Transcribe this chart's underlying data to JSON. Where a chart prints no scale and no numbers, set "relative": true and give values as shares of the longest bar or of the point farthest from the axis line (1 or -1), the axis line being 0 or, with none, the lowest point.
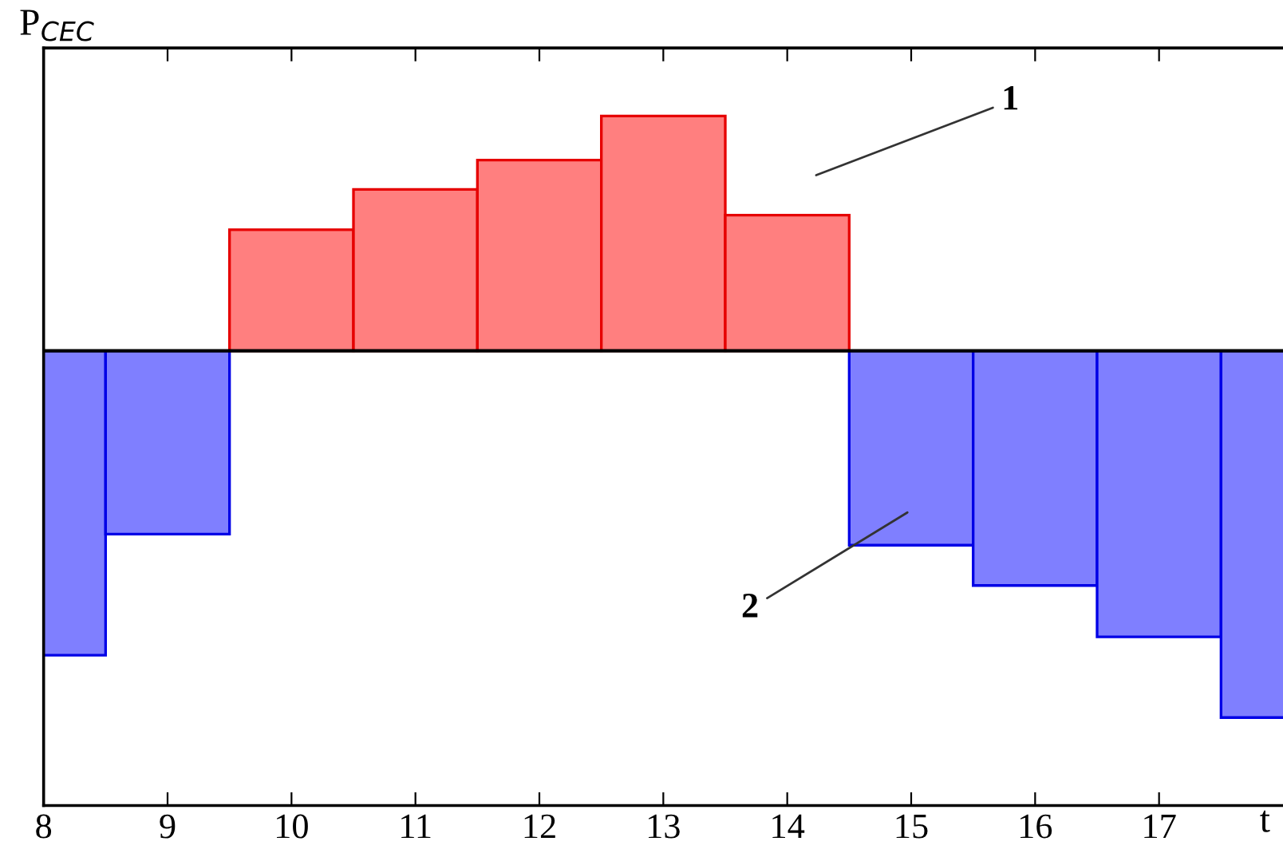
{
  "chart_data": {
    "type": "bar",
    "relative": true,
    "ylabel": "P$_{CEC}$",
    "xlabel": "t",
    "x": [
      8,
      9,
      10,
      11,
      12,
      13,
      14,
      15,
      16,
      17,
      18
    ],
    "xlim": [
      8,
      18
    ],
    "xticks": [
      8,
      9,
      10,
      11,
      12,
      13,
      14,
      15,
      16,
      17
    ],
    "series": [
      {
        "color": "#ff7f7f",
        "values": [
          null,
          null,
          0.33,
          0.44,
          0.52,
          0.64,
          0.37,
          null,
          null,
          null,
          null
        ]
      },
      {
        "color": "#7f7fff",
        "values": [
          -0.83,
          -0.5,
          null,
          null,
          null,
          null,
          null,
          -0.53,
          -0.64,
          -0.78,
          -1.0
        ]
      }
    ],
    "annotations": [
      "1",
      "2"
    ],
    "grid": false,
    "legend": false
  }
}
